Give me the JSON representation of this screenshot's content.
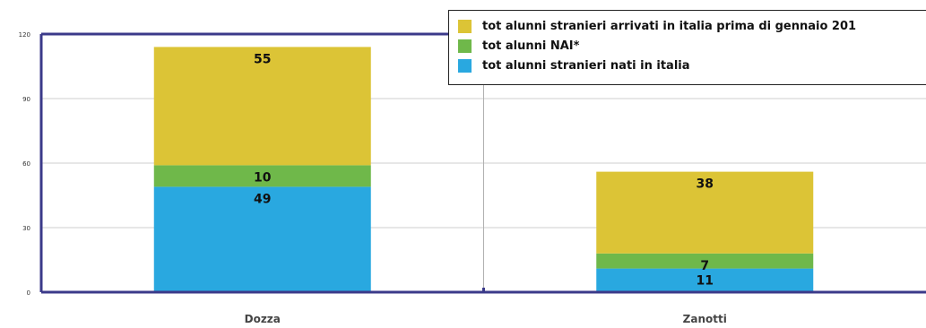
{
  "chart_data": {
    "type": "bar",
    "stacked": true,
    "categories": [
      "Dozza",
      "Zanotti"
    ],
    "series": [
      {
        "name": "tot alunni stranieri nati in italia",
        "values": [
          49,
          11
        ],
        "color": "#29a8e0"
      },
      {
        "name": "tot alunni NAI*",
        "values": [
          10,
          7
        ],
        "color": "#6fb84a"
      },
      {
        "name": "tot alunni stranieri arrivati in italia prima di gennaio 201",
        "values": [
          55,
          38
        ],
        "color": "#dcc436"
      }
    ],
    "ylim": [
      0,
      120
    ],
    "yticks": [
      0,
      30,
      60,
      90,
      120
    ],
    "grid": true,
    "legend": "top-right"
  }
}
